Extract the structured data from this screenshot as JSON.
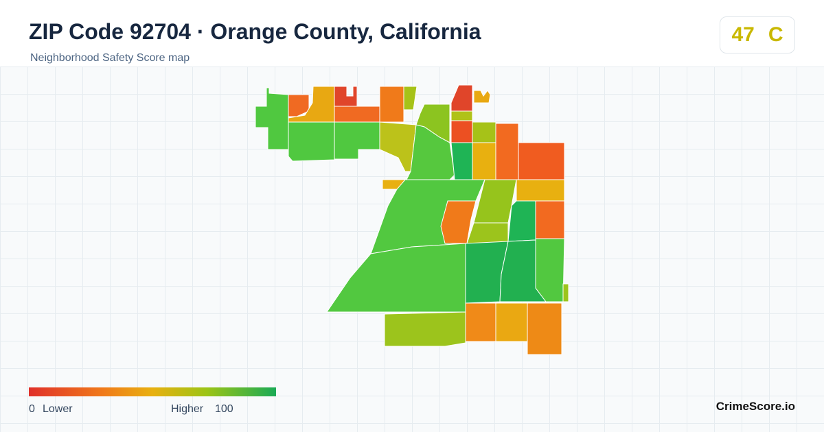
{
  "header": {
    "title": "ZIP Code 92704 · Orange County, California",
    "subtitle": "Neighborhood Safety Score map"
  },
  "score": {
    "value": 47,
    "grade": "C"
  },
  "legend": {
    "min": 0,
    "min_label": "Lower",
    "max_label": "Higher",
    "max": 100
  },
  "brand": "CrimeScore.io"
}
